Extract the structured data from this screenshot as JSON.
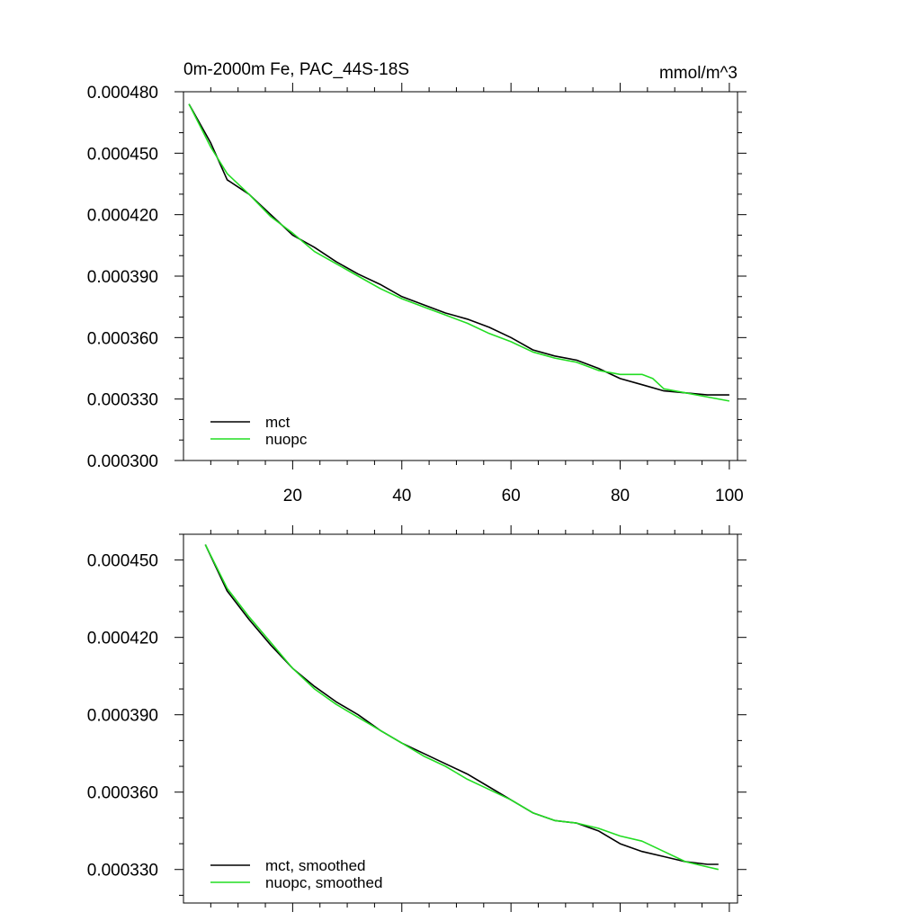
{
  "colors": {
    "mct": "#000000",
    "nuopc": "#22dd22",
    "axis": "#000000"
  },
  "chart_data": [
    {
      "type": "line",
      "title": "0m-2000m Fe, PAC_44S-18S",
      "units": "mmol/m^3",
      "xlim": [
        0,
        101.5
      ],
      "ylim": [
        0.0003,
        0.00048
      ],
      "x_ticks": [
        20,
        40,
        60,
        80,
        100
      ],
      "x_tick_labels": [
        "20",
        "40",
        "60",
        "80",
        "100"
      ],
      "y_ticks": [
        0.0003,
        0.00033,
        0.00036,
        0.00039,
        0.00042,
        0.00045,
        0.00048
      ],
      "y_tick_labels": [
        "0.000300",
        "0.000330",
        "0.000360",
        "0.000390",
        "0.000420",
        "0.000450",
        "0.000480"
      ],
      "legend": "bottom-left",
      "series": [
        {
          "name": "mct",
          "color": "#000000",
          "x": [
            1,
            5,
            8,
            12,
            16,
            20,
            24,
            28,
            32,
            36,
            40,
            44,
            48,
            52,
            56,
            60,
            64,
            68,
            72,
            76,
            80,
            84,
            88,
            92,
            96,
            100
          ],
          "y": [
            0.000474,
            0.000455,
            0.000437,
            0.00043,
            0.00042,
            0.00041,
            0.000404,
            0.000397,
            0.000391,
            0.000386,
            0.00038,
            0.000376,
            0.000372,
            0.000369,
            0.000365,
            0.00036,
            0.000354,
            0.000351,
            0.000349,
            0.000345,
            0.00034,
            0.000337,
            0.000334,
            0.000333,
            0.000332,
            0.000332
          ]
        },
        {
          "name": "nuopc",
          "color": "#22dd22",
          "x": [
            1,
            5,
            8,
            12,
            16,
            20,
            24,
            28,
            32,
            36,
            40,
            44,
            48,
            52,
            56,
            60,
            64,
            68,
            72,
            76,
            80,
            84,
            86,
            88,
            92,
            96,
            100
          ],
          "y": [
            0.000474,
            0.000453,
            0.00044,
            0.00043,
            0.000419,
            0.000411,
            0.000402,
            0.000396,
            0.00039,
            0.000384,
            0.000379,
            0.000375,
            0.000371,
            0.000367,
            0.000362,
            0.000358,
            0.000353,
            0.00035,
            0.000348,
            0.000344,
            0.000342,
            0.000342,
            0.00034,
            0.000335,
            0.000333,
            0.000331,
            0.000329
          ]
        }
      ]
    },
    {
      "type": "line",
      "xlim": [
        0,
        101.5
      ],
      "ylim": [
        0.000317,
        0.00046
      ],
      "x_ticks": [
        20,
        40,
        60,
        80,
        100
      ],
      "y_ticks": [
        0.00033,
        0.00036,
        0.00039,
        0.00042,
        0.00045
      ],
      "y_tick_labels": [
        "0.000330",
        "0.000360",
        "0.000390",
        "0.000420",
        "0.000450"
      ],
      "legend": "bottom-left",
      "series": [
        {
          "name": "mct, smoothed",
          "color": "#000000",
          "x": [
            4,
            8,
            12,
            16,
            20,
            24,
            28,
            32,
            36,
            40,
            44,
            48,
            52,
            56,
            60,
            64,
            68,
            72,
            76,
            80,
            84,
            88,
            92,
            96,
            98
          ],
          "y": [
            0.000456,
            0.000438,
            0.000427,
            0.000417,
            0.000408,
            0.000401,
            0.000395,
            0.00039,
            0.000384,
            0.000379,
            0.000375,
            0.000371,
            0.000367,
            0.000362,
            0.000357,
            0.000352,
            0.000349,
            0.000348,
            0.000345,
            0.00034,
            0.000337,
            0.000335,
            0.000333,
            0.000332,
            0.000332
          ]
        },
        {
          "name": "nuopc, smoothed",
          "color": "#22dd22",
          "x": [
            4,
            8,
            12,
            16,
            20,
            24,
            28,
            32,
            36,
            40,
            44,
            48,
            52,
            56,
            60,
            64,
            68,
            72,
            76,
            80,
            84,
            88,
            92,
            96,
            98
          ],
          "y": [
            0.000456,
            0.000439,
            0.000428,
            0.000418,
            0.000408,
            0.0004,
            0.000394,
            0.000389,
            0.000384,
            0.000379,
            0.000374,
            0.00037,
            0.000365,
            0.000361,
            0.000357,
            0.000352,
            0.000349,
            0.000348,
            0.000346,
            0.000343,
            0.000341,
            0.000337,
            0.000333,
            0.000331,
            0.00033
          ]
        }
      ]
    }
  ]
}
